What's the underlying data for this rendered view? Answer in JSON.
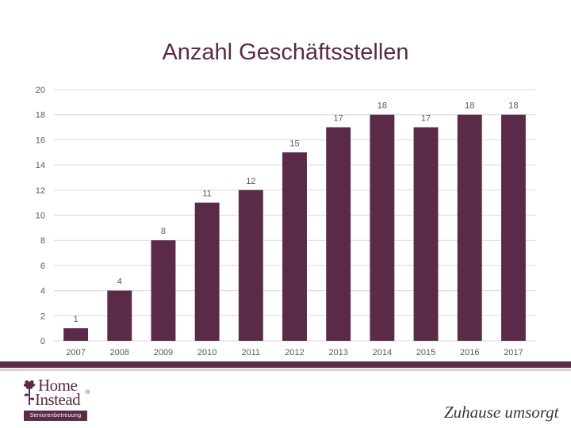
{
  "colors": {
    "bar": "#5a2a48",
    "grid": "#d9d9d9",
    "text": "#595959",
    "title": "#5a2a48"
  },
  "chart_data": {
    "type": "bar",
    "title": "Anzahl Geschäftsstellen",
    "categories": [
      "2007",
      "2008",
      "2009",
      "2010",
      "2011",
      "2012",
      "2013",
      "2014",
      "2015",
      "2016",
      "2017"
    ],
    "values": [
      1,
      4,
      8,
      11,
      12,
      15,
      17,
      18,
      17,
      18,
      18
    ],
    "yticks": [
      0,
      2,
      4,
      6,
      8,
      10,
      12,
      14,
      16,
      18,
      20
    ],
    "ylim": [
      0,
      20
    ],
    "xlabel": "",
    "ylabel": "",
    "grid": true
  },
  "footer": {
    "logo_line1": "Home",
    "logo_line2": "Instead",
    "logo_reg": "®",
    "logo_sub": "Seniorenbetreuung",
    "slogan": "Zuhause umsorgt"
  }
}
